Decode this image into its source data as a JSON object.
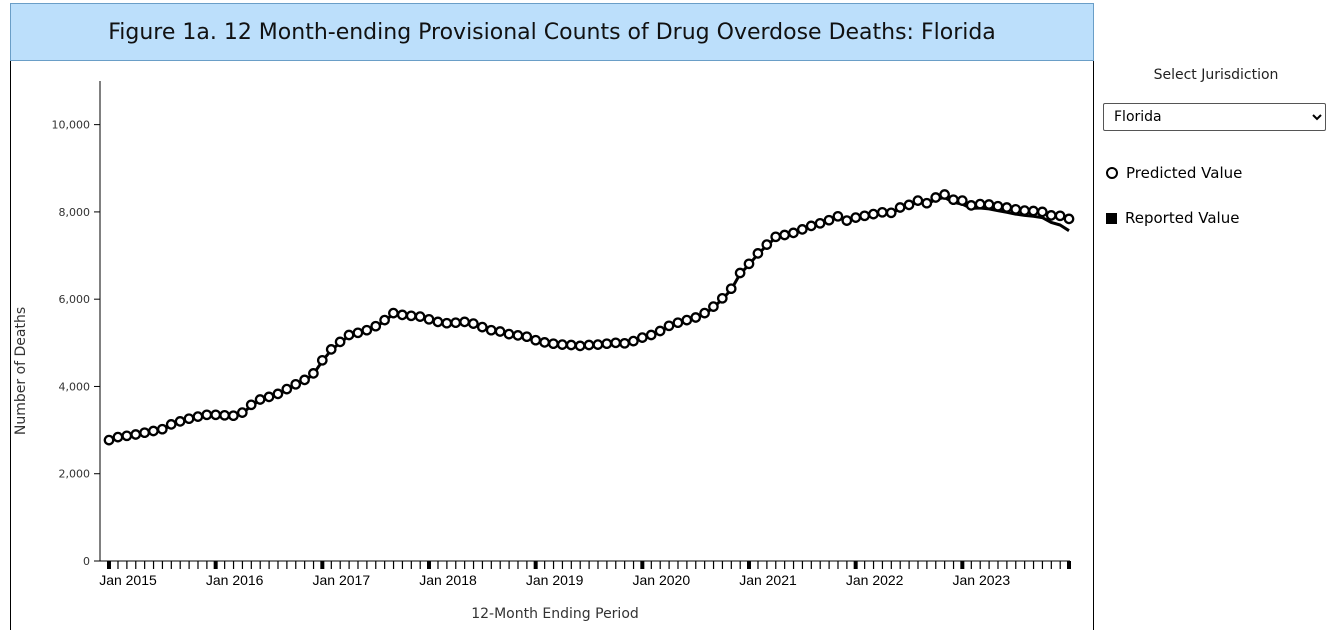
{
  "title": "Figure 1a. 12 Month-ending Provisional Counts of Drug Overdose Deaths: Florida",
  "controls": {
    "select_label": "Select Jurisdiction",
    "jurisdiction": "Florida"
  },
  "legend": {
    "predicted_label": "Predicted Value",
    "reported_label": "Reported Value"
  },
  "chart_data": {
    "type": "line",
    "title": "Figure 1a. 12 Month-ending Provisional Counts of Drug Overdose Deaths: Florida",
    "xlabel": "12-Month Ending Period",
    "ylabel": "Number of Deaths",
    "ylim": [
      0,
      11000
    ],
    "yticks": [
      0,
      2000,
      4000,
      6000,
      8000,
      10000
    ],
    "ytick_labels": [
      "0",
      "2,000",
      "4,000",
      "6,000",
      "8,000",
      "10,000"
    ],
    "xtick_labels": [
      "Jan 2015",
      "Jan 2016",
      "Jan 2017",
      "Jan 2018",
      "Jan 2019",
      "Jan 2020",
      "Jan 2021",
      "Jan 2022",
      "Jan 2023"
    ],
    "x_start": "Jan 2015",
    "x_end": "Apr 2023",
    "grid": false,
    "legend_position": "right",
    "series": [
      {
        "name": "Predicted Value",
        "marker": "open-circle",
        "values": [
          2770,
          2840,
          2870,
          2900,
          2940,
          2980,
          3020,
          3130,
          3200,
          3260,
          3310,
          3350,
          3350,
          3340,
          3330,
          3400,
          3580,
          3700,
          3760,
          3830,
          3940,
          4050,
          4150,
          4300,
          4600,
          4850,
          5020,
          5180,
          5230,
          5290,
          5380,
          5520,
          5680,
          5640,
          5620,
          5600,
          5540,
          5480,
          5450,
          5460,
          5480,
          5440,
          5360,
          5290,
          5260,
          5200,
          5170,
          5140,
          5060,
          5010,
          4980,
          4960,
          4950,
          4930,
          4950,
          4960,
          4980,
          5000,
          4990,
          5040,
          5120,
          5180,
          5270,
          5390,
          5460,
          5520,
          5580,
          5680,
          5830,
          6020,
          6240,
          6600,
          6810,
          7050,
          7250,
          7430,
          7470,
          7520,
          7600,
          7680,
          7740,
          7810,
          7900,
          7800,
          7870,
          7910,
          7950,
          7990,
          7980,
          8100,
          8160,
          8260,
          8200,
          8330,
          8400,
          8280,
          8260,
          8150,
          8180,
          8170,
          8130,
          8100,
          8060,
          8030,
          8020,
          8000,
          7920,
          7910,
          7840
        ]
      },
      {
        "name": "Reported Value",
        "marker": "line",
        "values": [
          2740,
          2810,
          2850,
          2880,
          2920,
          2960,
          3000,
          3110,
          3180,
          3240,
          3290,
          3330,
          3330,
          3320,
          3310,
          3380,
          3560,
          3680,
          3740,
          3810,
          3920,
          4030,
          4130,
          4280,
          4580,
          4830,
          5000,
          5160,
          5210,
          5270,
          5360,
          5500,
          5660,
          5620,
          5600,
          5580,
          5520,
          5460,
          5430,
          5440,
          5460,
          5420,
          5340,
          5270,
          5240,
          5180,
          5150,
          5120,
          5040,
          4990,
          4960,
          4940,
          4930,
          4910,
          4930,
          4940,
          4960,
          4980,
          4970,
          5020,
          5100,
          5160,
          5250,
          5370,
          5440,
          5500,
          5560,
          5660,
          5810,
          6000,
          6220,
          6580,
          6790,
          7030,
          7230,
          7410,
          7450,
          7500,
          7580,
          7660,
          7720,
          7790,
          7880,
          7780,
          7850,
          7890,
          7930,
          7970,
          7960,
          8080,
          8140,
          8230,
          8170,
          8290,
          8330,
          8220,
          8180,
          8080,
          8090,
          8070,
          8030,
          7990,
          7950,
          7920,
          7900,
          7870,
          7760,
          7700,
          7570
        ]
      }
    ]
  }
}
